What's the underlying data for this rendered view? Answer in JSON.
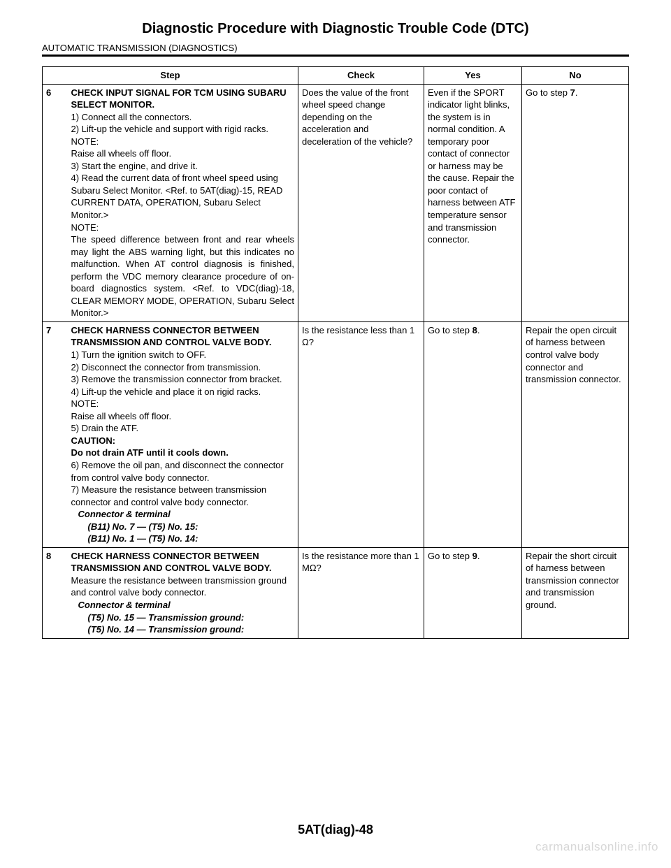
{
  "page": {
    "title": "Diagnostic Procedure with Diagnostic Trouble Code (DTC)",
    "section": "AUTOMATIC TRANSMISSION (DIAGNOSTICS)",
    "footer": "5AT(diag)-48",
    "watermark": "carmanualsonline.info"
  },
  "table": {
    "headers": {
      "step": "Step",
      "check": "Check",
      "yes": "Yes",
      "no": "No"
    },
    "rows": [
      {
        "num": "6",
        "title": "CHECK INPUT SIGNAL FOR TCM USING SUBARU SELECT MONITOR.",
        "lines": {
          "l1": "1)  Connect all the connectors.",
          "l2": "2)  Lift-up the vehicle and support with rigid racks.",
          "l3": "NOTE:",
          "l4": "Raise all wheels off floor.",
          "l5": "3)  Start the engine, and drive it.",
          "l6": "4)  Read the current data of front wheel speed using Subaru Select Monitor. <Ref. to 5AT(diag)-15, READ CURRENT DATA, OPERATION, Subaru Select Monitor.>",
          "l7": "NOTE:",
          "l8": "The speed difference between front and rear wheels may light the ABS warning light, but this indicates no malfunction. When AT control diagnosis is finished, perform the VDC memory clearance procedure of on-board diagnostics system. <Ref. to VDC(diag)-18, CLEAR MEMORY MODE, OPERATION, Subaru Select Monitor.>"
        },
        "check": "Does the value of the front wheel speed change depending on the acceleration and deceleration of the vehicle?",
        "yes": "Even if the SPORT indicator light blinks, the system is in normal condition. A temporary poor contact of connector or harness may be the cause. Repair the poor contact of harness between ATF temperature sensor and transmission connector.",
        "no_pre": "Go to step ",
        "no_bold": "7",
        "no_post": "."
      },
      {
        "num": "7",
        "title": "CHECK HARNESS CONNECTOR BETWEEN TRANSMISSION AND CONTROL VALVE BODY.",
        "lines": {
          "l1": "1)  Turn the ignition switch to OFF.",
          "l2": "2)  Disconnect the connector from transmission.",
          "l3": "3)  Remove the transmission connector from bracket.",
          "l4": "4)  Lift-up the vehicle and place it on rigid racks.",
          "l5": "NOTE:",
          "l6": "Raise all wheels off floor.",
          "l7": "5)  Drain the ATF.",
          "l8": "CAUTION:",
          "l9": "Do not drain ATF until it cools down.",
          "l10": "6)  Remove the oil pan, and disconnect the connector from control valve body connector.",
          "l11": "7)  Measure the resistance between transmission connector and control valve body connector.",
          "l12": "Connector & terminal",
          "l13": "(B11) No. 7 — (T5) No. 15:",
          "l14": "(B11) No. 1 — (T5) No. 14:"
        },
        "check": "Is the resistance less than 1 Ω?",
        "yes_pre": "Go to step ",
        "yes_bold": "8",
        "yes_post": ".",
        "no": "Repair the open circuit of harness between control valve body connector and transmission connector."
      },
      {
        "num": "8",
        "title": "CHECK HARNESS CONNECTOR BETWEEN TRANSMISSION AND CONTROL VALVE BODY.",
        "lines": {
          "l1": "Measure the resistance between transmission ground and control valve body connector.",
          "l2": "Connector & terminal",
          "l3": "(T5) No. 15 — Transmission ground:",
          "l4": "(T5) No. 14 — Transmission ground:"
        },
        "check": "Is the resistance more than 1 MΩ?",
        "yes_pre": "Go to step ",
        "yes_bold": "9",
        "yes_post": ".",
        "no": "Repair the short circuit of harness between transmission connector and transmission ground."
      }
    ]
  }
}
